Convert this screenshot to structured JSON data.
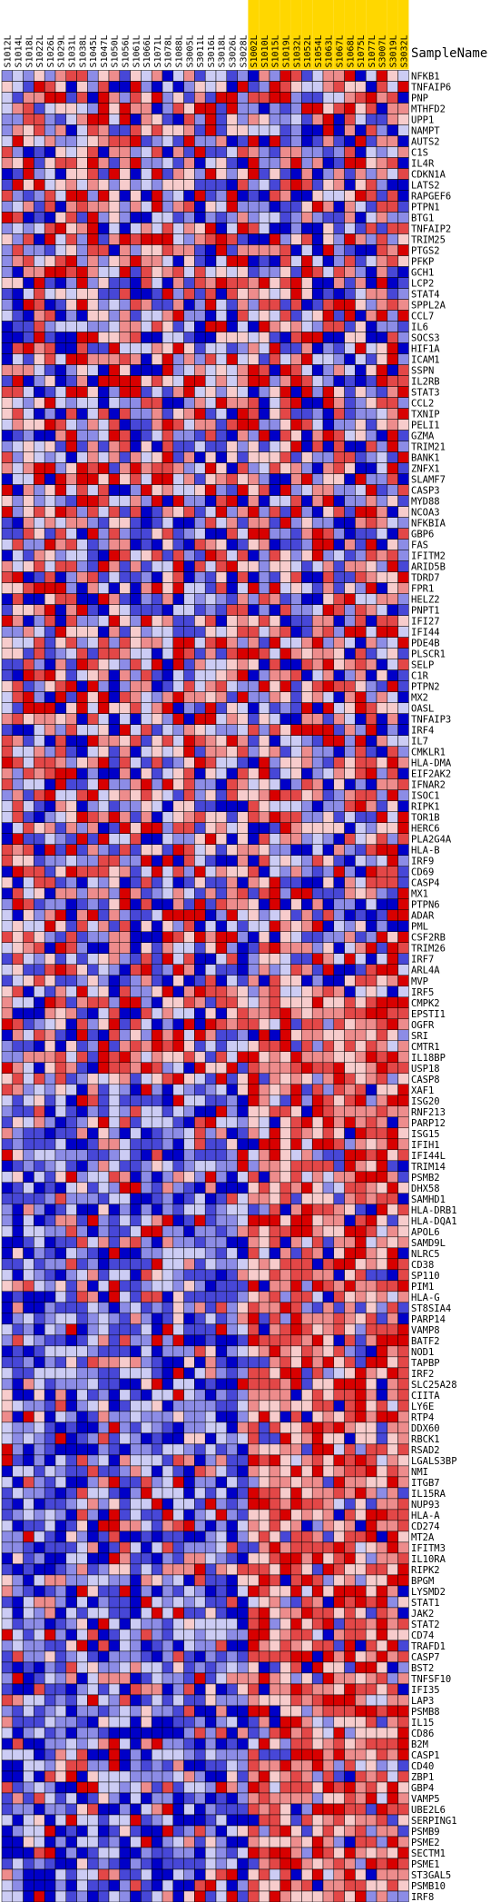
{
  "chart_data": {
    "type": "heatmap",
    "header_label": "SampleName",
    "columns": [
      {
        "name": "S1012L",
        "group": "a"
      },
      {
        "name": "S1014L",
        "group": "a"
      },
      {
        "name": "S1018L",
        "group": "a"
      },
      {
        "name": "S1022L",
        "group": "a"
      },
      {
        "name": "S1026L",
        "group": "a"
      },
      {
        "name": "S1029L",
        "group": "a"
      },
      {
        "name": "S1031L",
        "group": "a"
      },
      {
        "name": "S1038L",
        "group": "a"
      },
      {
        "name": "S1045L",
        "group": "a"
      },
      {
        "name": "S1047L",
        "group": "a"
      },
      {
        "name": "S1050L",
        "group": "a"
      },
      {
        "name": "S1056L",
        "group": "a"
      },
      {
        "name": "S1061L",
        "group": "a"
      },
      {
        "name": "S1066L",
        "group": "a"
      },
      {
        "name": "S1071L",
        "group": "a"
      },
      {
        "name": "S1078L",
        "group": "a"
      },
      {
        "name": "S1088L",
        "group": "a"
      },
      {
        "name": "S3005L",
        "group": "a"
      },
      {
        "name": "S3011L",
        "group": "a"
      },
      {
        "name": "S3016L",
        "group": "a"
      },
      {
        "name": "S3018L",
        "group": "a"
      },
      {
        "name": "S3026L",
        "group": "a"
      },
      {
        "name": "S3028L",
        "group": "a"
      },
      {
        "name": "S1002L",
        "group": "b"
      },
      {
        "name": "S1010L",
        "group": "b"
      },
      {
        "name": "S1015L",
        "group": "b"
      },
      {
        "name": "S1019L",
        "group": "b"
      },
      {
        "name": "S1032L",
        "group": "b"
      },
      {
        "name": "S1052L",
        "group": "b"
      },
      {
        "name": "S1054L",
        "group": "b"
      },
      {
        "name": "S1063L",
        "group": "b"
      },
      {
        "name": "S1067L",
        "group": "b"
      },
      {
        "name": "S1068L",
        "group": "b"
      },
      {
        "name": "S1075L",
        "group": "b"
      },
      {
        "name": "S1077L",
        "group": "b"
      },
      {
        "name": "S3007L",
        "group": "b"
      },
      {
        "name": "S3019L",
        "group": "b"
      },
      {
        "name": "S3032L",
        "group": "b"
      }
    ],
    "group_colors": {
      "a": "#ffffff",
      "b": "#ffd700"
    },
    "rows": [
      "NFKB1",
      "TNFAIP6",
      "PNP",
      "MTHFD2",
      "UPP1",
      "NAMPT",
      "AUTS2",
      "C1S",
      "IL4R",
      "CDKN1A",
      "LATS2",
      "RAPGEF6",
      "PTPN1",
      "BTG1",
      "TNFAIP2",
      "TRIM25",
      "PTGS2",
      "PFKP",
      "GCH1",
      "LCP2",
      "STAT4",
      "SPPL2A",
      "CCL7",
      "IL6",
      "SOCS3",
      "HIF1A",
      "ICAM1",
      "SSPN",
      "IL2RB",
      "STAT3",
      "CCL2",
      "TXNIP",
      "PELI1",
      "GZMA",
      "TRIM21",
      "BANK1",
      "ZNFX1",
      "SLAMF7",
      "CASP3",
      "MYD88",
      "NCOA3",
      "NFKBIA",
      "GBP6",
      "FAS",
      "IFITM2",
      "ARID5B",
      "TDRD7",
      "FPR1",
      "HELZ2",
      "PNPT1",
      "IFI27",
      "IFI44",
      "PDE4B",
      "PLSCR1",
      "SELP",
      "C1R",
      "PTPN2",
      "MX2",
      "OASL",
      "TNFAIP3",
      "IRF4",
      "IL7",
      "CMKLR1",
      "HLA-DMA",
      "EIF2AK2",
      "IFNAR2",
      "ISOC1",
      "RIPK1",
      "TOR1B",
      "HERC6",
      "PLA2G4A",
      "HLA-B",
      "IRF9",
      "CD69",
      "CASP4",
      "MX1",
      "PTPN6",
      "ADAR",
      "PML",
      "CSF2RB",
      "TRIM26",
      "IRF7",
      "ARL4A",
      "MVP",
      "IRF5",
      "CMPK2",
      "EPSTI1",
      "OGFR",
      "SRI",
      "CMTR1",
      "IL18BP",
      "USP18",
      "CASP8",
      "XAF1",
      "ISG20",
      "RNF213",
      "PARP12",
      "ISG15",
      "IFIH1",
      "IFI44L",
      "TRIM14",
      "PSMB2",
      "DHX58",
      "SAMHD1",
      "HLA-DRB1",
      "HLA-DQA1",
      "APOL6",
      "SAMD9L",
      "NLRC5",
      "CD38",
      "SP110",
      "PIM1",
      "HLA-G",
      "ST8SIA4",
      "PARP14",
      "VAMP8",
      "BATF2",
      "NOD1",
      "TAPBP",
      "IRF2",
      "SLC25A28",
      "CIITA",
      "LY6E",
      "RTP4",
      "DDX60",
      "RBCK1",
      "RSAD2",
      "LGALS3BP",
      "NMI",
      "ITGB7",
      "IL15RA",
      "NUP93",
      "HLA-A",
      "CD274",
      "MT2A",
      "IFITM3",
      "IL10RA",
      "RIPK2",
      "BPGM",
      "LYSMD2",
      "STAT1",
      "JAK2",
      "STAT2",
      "CD74",
      "TRAFD1",
      "CASP7",
      "BST2",
      "TNFSF10",
      "IFI35",
      "LAP3",
      "PSMB8",
      "IL15",
      "CD86",
      "B2M",
      "CASP1",
      "CD40",
      "ZBP1",
      "GBP4",
      "VAMP5",
      "UBE2L6",
      "SERPING1",
      "PSMB9",
      "PSME2",
      "SECTM1",
      "PSME1",
      "ST3GAL5",
      "PSMB10",
      "IRF8"
    ],
    "value_range": [
      -1,
      1
    ],
    "colormap": {
      "low": "#0000c8",
      "mid": "#ffffff",
      "high": "#d80000"
    }
  }
}
